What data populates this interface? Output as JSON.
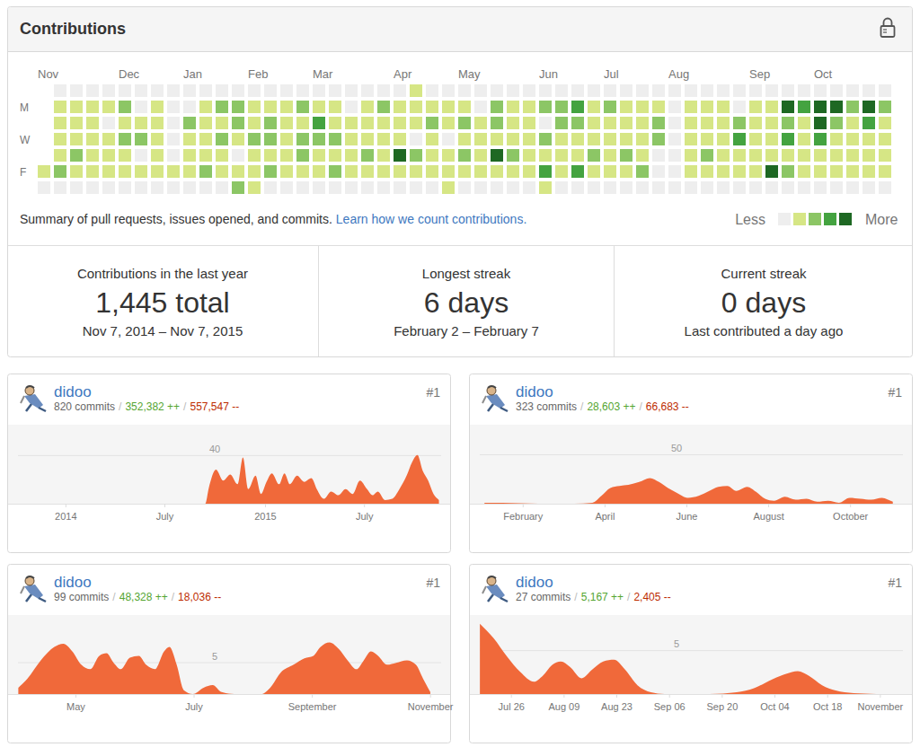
{
  "panel": {
    "title": "Contributions",
    "summary": "Summary of pull requests, issues opened, and commits.",
    "link": "Learn how we count contributions.",
    "legend_less": "Less",
    "legend_more": "More",
    "stats": [
      {
        "label": "Contributions in the last year",
        "value": "1,445 total",
        "detail": "Nov 7, 2014 – Nov 7, 2015"
      },
      {
        "label": "Longest streak",
        "value": "6 days",
        "detail": "February 2 – February 7"
      },
      {
        "label": "Current streak",
        "value": "0 days",
        "detail": "Last contributed a day ago"
      }
    ]
  },
  "chart_data": [
    {
      "type": "heatmap",
      "xticks": [
        {
          "value": 0,
          "label": "Nov"
        },
        {
          "value": 5,
          "label": "Dec"
        },
        {
          "value": 9,
          "label": "Jan"
        },
        {
          "value": 13,
          "label": "Feb"
        },
        {
          "value": 17,
          "label": "Mar"
        },
        {
          "value": 22,
          "label": "Apr"
        },
        {
          "value": 26,
          "label": "May"
        },
        {
          "value": 31,
          "label": "Jun"
        },
        {
          "value": 35,
          "label": "Jul"
        },
        {
          "value": 39,
          "label": "Aug"
        },
        {
          "value": 44,
          "label": "Sep"
        },
        {
          "value": 48,
          "label": "Oct"
        }
      ],
      "yticks": [
        {
          "value": 1,
          "label": "M"
        },
        {
          "value": 3,
          "label": "W"
        },
        {
          "value": 5,
          "label": "F"
        }
      ],
      "levels": [
        0,
        1,
        2,
        3,
        4
      ],
      "colors": [
        "#eeeeee",
        "#d6e685",
        "#8cc665",
        "#44a340",
        "#1e6823"
      ],
      "weeks": [
        [
          null,
          null,
          null,
          null,
          null,
          1,
          0
        ],
        [
          0,
          1,
          1,
          1,
          1,
          2,
          0
        ],
        [
          0,
          1,
          1,
          1,
          2,
          1,
          0
        ],
        [
          0,
          1,
          1,
          1,
          1,
          1,
          0
        ],
        [
          0,
          1,
          0,
          1,
          1,
          1,
          0
        ],
        [
          0,
          2,
          1,
          2,
          1,
          1,
          0
        ],
        [
          0,
          0,
          1,
          2,
          0,
          1,
          0
        ],
        [
          0,
          1,
          1,
          1,
          1,
          1,
          0
        ],
        [
          0,
          0,
          0,
          0,
          0,
          1,
          0
        ],
        [
          0,
          0,
          2,
          1,
          1,
          1,
          0
        ],
        [
          0,
          1,
          1,
          1,
          1,
          2,
          0
        ],
        [
          0,
          2,
          1,
          2,
          1,
          1,
          0
        ],
        [
          0,
          2,
          2,
          1,
          0,
          1,
          2
        ],
        [
          0,
          1,
          1,
          2,
          1,
          1,
          1
        ],
        [
          0,
          1,
          2,
          2,
          1,
          2,
          0
        ],
        [
          0,
          1,
          1,
          1,
          1,
          1,
          0
        ],
        [
          0,
          2,
          1,
          2,
          2,
          1,
          0
        ],
        [
          0,
          1,
          3,
          2,
          1,
          1,
          0
        ],
        [
          0,
          1,
          1,
          2,
          1,
          2,
          0
        ],
        [
          0,
          0,
          1,
          1,
          1,
          1,
          0
        ],
        [
          0,
          1,
          1,
          1,
          2,
          1,
          0
        ],
        [
          0,
          2,
          1,
          1,
          1,
          1,
          0
        ],
        [
          0,
          1,
          1,
          1,
          4,
          1,
          0
        ],
        [
          1,
          1,
          1,
          0,
          2,
          1,
          0
        ],
        [
          0,
          1,
          2,
          1,
          1,
          1,
          0
        ],
        [
          0,
          1,
          1,
          0,
          1,
          1,
          1
        ],
        [
          0,
          1,
          2,
          1,
          2,
          1,
          0
        ],
        [
          0,
          0,
          1,
          1,
          1,
          1,
          0
        ],
        [
          0,
          2,
          2,
          1,
          4,
          1,
          0
        ],
        [
          0,
          1,
          1,
          1,
          2,
          1,
          0
        ],
        [
          0,
          1,
          1,
          1,
          1,
          1,
          0
        ],
        [
          0,
          2,
          0,
          2,
          1,
          3,
          1
        ],
        [
          0,
          2,
          2,
          1,
          1,
          1,
          0
        ],
        [
          0,
          3,
          2,
          1,
          1,
          3,
          0
        ],
        [
          0,
          1,
          1,
          1,
          2,
          1,
          0
        ],
        [
          0,
          2,
          1,
          1,
          1,
          1,
          0
        ],
        [
          0,
          1,
          1,
          1,
          2,
          1,
          0
        ],
        [
          0,
          1,
          1,
          1,
          1,
          2,
          0
        ],
        [
          0,
          1,
          2,
          2,
          0,
          0,
          0
        ],
        [
          0,
          0,
          0,
          0,
          0,
          0,
          0
        ],
        [
          0,
          1,
          1,
          1,
          1,
          1,
          0
        ],
        [
          0,
          1,
          1,
          1,
          2,
          1,
          0
        ],
        [
          0,
          1,
          1,
          1,
          1,
          1,
          0
        ],
        [
          0,
          0,
          2,
          3,
          1,
          1,
          0
        ],
        [
          0,
          1,
          1,
          1,
          1,
          1,
          0
        ],
        [
          0,
          1,
          1,
          1,
          1,
          4,
          0
        ],
        [
          0,
          4,
          2,
          3,
          1,
          2,
          0
        ],
        [
          0,
          3,
          1,
          1,
          1,
          1,
          0
        ],
        [
          0,
          4,
          4,
          3,
          1,
          1,
          0
        ],
        [
          0,
          4,
          2,
          1,
          1,
          1,
          0
        ],
        [
          0,
          2,
          1,
          1,
          1,
          1,
          0
        ],
        [
          0,
          4,
          3,
          1,
          1,
          1,
          0
        ],
        [
          0,
          2,
          1,
          1,
          1,
          1,
          0
        ]
      ]
    },
    {
      "type": "area",
      "header": {
        "user": "didoo",
        "commits": "820 commits",
        "separator": "/",
        "additions": "352,382 ++",
        "deletions": "557,547 --",
        "rank": "#1"
      },
      "x": [
        2013.76,
        2014.698,
        2014.716,
        2014.752,
        2014.788,
        2014.824,
        2014.86,
        2014.887,
        2014.914,
        2014.95,
        2014.977,
        2015.005,
        2015.032,
        2015.068,
        2015.095,
        2015.122,
        2015.158,
        2015.194,
        2015.23,
        2015.257,
        2015.293,
        2015.329,
        2015.365,
        2015.401,
        2015.437,
        2015.473,
        2015.509,
        2015.536,
        2015.563,
        2015.599,
        2015.635,
        2015.671,
        2015.707,
        2015.734,
        2015.761,
        2015.788,
        2015.815,
        2015.842,
        2015.869
      ],
      "values": [
        0,
        0,
        13,
        28,
        19,
        24,
        16,
        38,
        12,
        23,
        8,
        18,
        25,
        16,
        25,
        16,
        23,
        18,
        21,
        12,
        4,
        10,
        7,
        12,
        8,
        19,
        12,
        7,
        10,
        3,
        4,
        12,
        23,
        34,
        40,
        27,
        19,
        8,
        3
      ],
      "color": "#f0693a",
      "xlim": [
        2013.76,
        2015.88
      ],
      "ylim": [
        0,
        65
      ],
      "xticks": [
        2014,
        {
          "value": 2014.496,
          "label": "July"
        },
        2015,
        {
          "value": 2015.496,
          "label": "July"
        }
      ],
      "yticks": [
        40
      ],
      "grid": true
    },
    {
      "type": "area",
      "header": {
        "user": "didoo",
        "commits": "323 commits",
        "separator": "/",
        "additions": "28,603 ++",
        "deletions": "66,683 --",
        "rank": "#1"
      },
      "x": [
        1.055,
        1.495,
        1.934,
        2.374,
        3.253,
        3.692,
        3.912,
        4.132,
        4.352,
        4.571,
        4.835,
        5.099,
        5.319,
        5.538,
        5.758,
        6.022,
        6.286,
        6.549,
        6.769,
        6.989,
        7.209,
        7.473,
        7.692,
        7.912,
        8.132,
        8.396,
        8.659,
        8.923,
        9.187,
        9.451,
        9.714,
        9.978,
        10.242,
        10.505,
        10.769,
        11.033
      ],
      "values": [
        1,
        1,
        0.5,
        0,
        0,
        1,
        8,
        16,
        18,
        19,
        22,
        26,
        22,
        16,
        11,
        6,
        8,
        13,
        17,
        18,
        13,
        17,
        12,
        5,
        3,
        7,
        4,
        5,
        2,
        3,
        1,
        6,
        5,
        4,
        6,
        2
      ],
      "color": "#f0693a",
      "xlim": [
        0.94,
        11.28
      ],
      "ylim": [
        0,
        80
      ],
      "xticks": [
        {
          "value": 2,
          "label": "February"
        },
        {
          "value": 4,
          "label": "April"
        },
        {
          "value": 6,
          "label": "June"
        },
        {
          "value": 8,
          "label": "August"
        },
        {
          "value": 10,
          "label": "October"
        }
      ],
      "yticks": [
        50
      ],
      "grid": true
    },
    {
      "type": "area",
      "header": {
        "user": "didoo",
        "commits": "99 commits",
        "separator": "/",
        "additions": "48,328 ++",
        "deletions": "18,036 --",
        "rank": "#1"
      },
      "x": [
        4.026,
        4.178,
        4.406,
        4.635,
        4.787,
        4.939,
        5.091,
        5.244,
        5.396,
        5.518,
        5.639,
        5.761,
        5.913,
        6.065,
        6.187,
        6.339,
        6.492,
        6.583,
        6.705,
        6.826,
        6.979,
        7.161,
        7.314,
        7.466,
        7.679,
        8.135,
        8.288,
        8.47,
        8.683,
        8.866,
        9.018,
        9.14,
        9.292,
        9.444,
        9.597,
        9.749,
        9.871,
        9.993,
        10.114,
        10.266,
        10.419,
        10.601,
        10.753,
        10.875,
        10.997
      ],
      "values": [
        1,
        2.4,
        5.3,
        7.4,
        7.9,
        6.7,
        4.6,
        3.9,
        6,
        6.4,
        4.9,
        3.9,
        5.7,
        6,
        4.6,
        3.9,
        6.7,
        7.4,
        4.6,
        0.6,
        0,
        1,
        1.4,
        0.3,
        0,
        0,
        1,
        3.4,
        4.6,
        5.6,
        6,
        7.4,
        8.1,
        7.1,
        5.3,
        3.9,
        5.3,
        6.7,
        6,
        4.6,
        4.9,
        5.3,
        4.6,
        2.4,
        0.3
      ],
      "color": "#f0693a",
      "xlim": [
        4.02,
        11.18
      ],
      "ylim": [
        0,
        12.4
      ],
      "xticks": [
        {
          "value": 5,
          "label": "May"
        },
        {
          "value": 7,
          "label": "July"
        },
        {
          "value": 9,
          "label": "September"
        },
        {
          "value": 11,
          "label": "November"
        }
      ],
      "yticks": [
        5
      ],
      "grid": true
    },
    {
      "type": "area",
      "header": {
        "user": "didoo",
        "commits": "27 commits",
        "separator": "/",
        "additions": "5,167 ++",
        "deletions": "2,405 --",
        "rank": "#1"
      },
      "x": [
        198.63,
        202.22,
        205.8,
        209.39,
        212.98,
        215.37,
        217.77,
        220.16,
        222.55,
        225.66,
        228.53,
        231.4,
        234.27,
        237.14,
        240.49,
        244.08,
        247.67,
        259.63,
        266.81,
        271.59,
        276.38,
        279.97,
        283.08,
        285.95,
        289.54,
        293.12,
        297.91,
        303.89
      ],
      "values": [
        8,
        6.4,
        4.3,
        2.5,
        1.4,
        2.1,
        3.3,
        3.7,
        3.1,
        1.8,
        2.8,
        3.7,
        3.9,
        2.8,
        1,
        0.2,
        0,
        0,
        0.2,
        0.7,
        1.7,
        2.3,
        2.6,
        2.1,
        1,
        0.4,
        0.1,
        0
      ],
      "color": "#f0693a",
      "xlim": [
        198.6,
        311
      ],
      "ylim": [
        0,
        9
      ],
      "xticks": [
        {
          "value": 207,
          "label": "Jul 26"
        },
        {
          "value": 221,
          "label": "Aug 09"
        },
        {
          "value": 235,
          "label": "Aug 23"
        },
        {
          "value": 249,
          "label": "Sep 06"
        },
        {
          "value": 263,
          "label": "Sep 20"
        },
        {
          "value": 277,
          "label": "Oct 04"
        },
        {
          "value": 291,
          "label": "Oct 18"
        },
        {
          "value": 305,
          "label": "November"
        }
      ],
      "yticks": [
        5
      ],
      "grid": true
    }
  ]
}
